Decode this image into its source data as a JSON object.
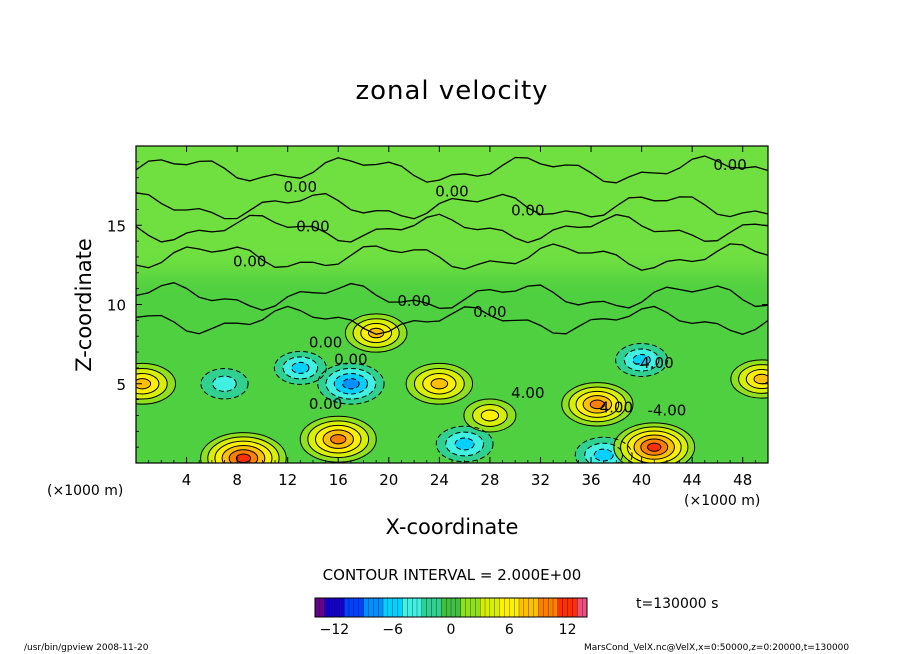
{
  "chart_data": {
    "type": "heatmap",
    "title": "zonal velocity",
    "xlabel": "X-coordinate",
    "ylabel": "Z-coordinate",
    "x_unit": "(×1000 m)",
    "xlim": [
      0,
      50
    ],
    "ylim": [
      0,
      20
    ],
    "x_ticks": [
      4,
      8,
      12,
      16,
      20,
      24,
      28,
      32,
      36,
      40,
      44,
      48
    ],
    "y_ticks": [
      5,
      10,
      15
    ],
    "contour_interval_text": "CONTOUR INTERVAL = 2.000E+00",
    "contour_labels": [
      "0.00",
      "0.00",
      "0.00",
      "0.00",
      "0.00",
      "0.00",
      "0.00",
      "0.00",
      "0.00",
      "0.00",
      "-4.00",
      "0.00",
      "4.00",
      "-4.00",
      "4.00"
    ],
    "colorbar": {
      "min": -14,
      "max": 14,
      "ticks": [
        -12,
        -6,
        0,
        6,
        12
      ],
      "colors": [
        "#6a008a",
        "#1400c8",
        "#0040ff",
        "#0090ff",
        "#00d0ff",
        "#40f0e0",
        "#30d090",
        "#40c040",
        "#90e020",
        "#d8f000",
        "#fff000",
        "#ffc000",
        "#ff8000",
        "#ff3000",
        "#f05080"
      ]
    },
    "features": [
      {
        "kind": "negative",
        "x": 17,
        "z": 5.0,
        "value": -8
      },
      {
        "kind": "negative",
        "x": 13,
        "z": 6.0,
        "value": -5
      },
      {
        "kind": "negative",
        "x": 7,
        "z": 5.0,
        "value": -4
      },
      {
        "kind": "negative",
        "x": 40,
        "z": 6.5,
        "value": -5
      },
      {
        "kind": "negative",
        "x": 26,
        "z": 1.2,
        "value": -6
      },
      {
        "kind": "negative",
        "x": 37,
        "z": 0.5,
        "value": -6
      },
      {
        "kind": "positive",
        "x": 8.5,
        "z": 0.3,
        "value": 12
      },
      {
        "kind": "positive",
        "x": 16,
        "z": 1.5,
        "value": 10
      },
      {
        "kind": "positive",
        "x": 24,
        "z": 5.0,
        "value": 8
      },
      {
        "kind": "positive",
        "x": 36.5,
        "z": 3.7,
        "value": 9
      },
      {
        "kind": "positive",
        "x": 41,
        "z": 1.0,
        "value": 11
      },
      {
        "kind": "positive",
        "x": 19,
        "z": 8.2,
        "value": 7
      },
      {
        "kind": "positive",
        "x": 0.5,
        "z": 5.0,
        "value": 8
      },
      {
        "kind": "positive",
        "x": 49.5,
        "z": 5.3,
        "value": 7
      },
      {
        "kind": "positive",
        "x": 28,
        "z": 3.0,
        "value": 5
      }
    ]
  },
  "time_label": "t=130000  s",
  "footer": {
    "left": "/usr/bin/gpview   2008-11-20",
    "right": "MarsCond_VelX.nc@VelX,x=0:50000,z=0:20000,t=130000"
  }
}
